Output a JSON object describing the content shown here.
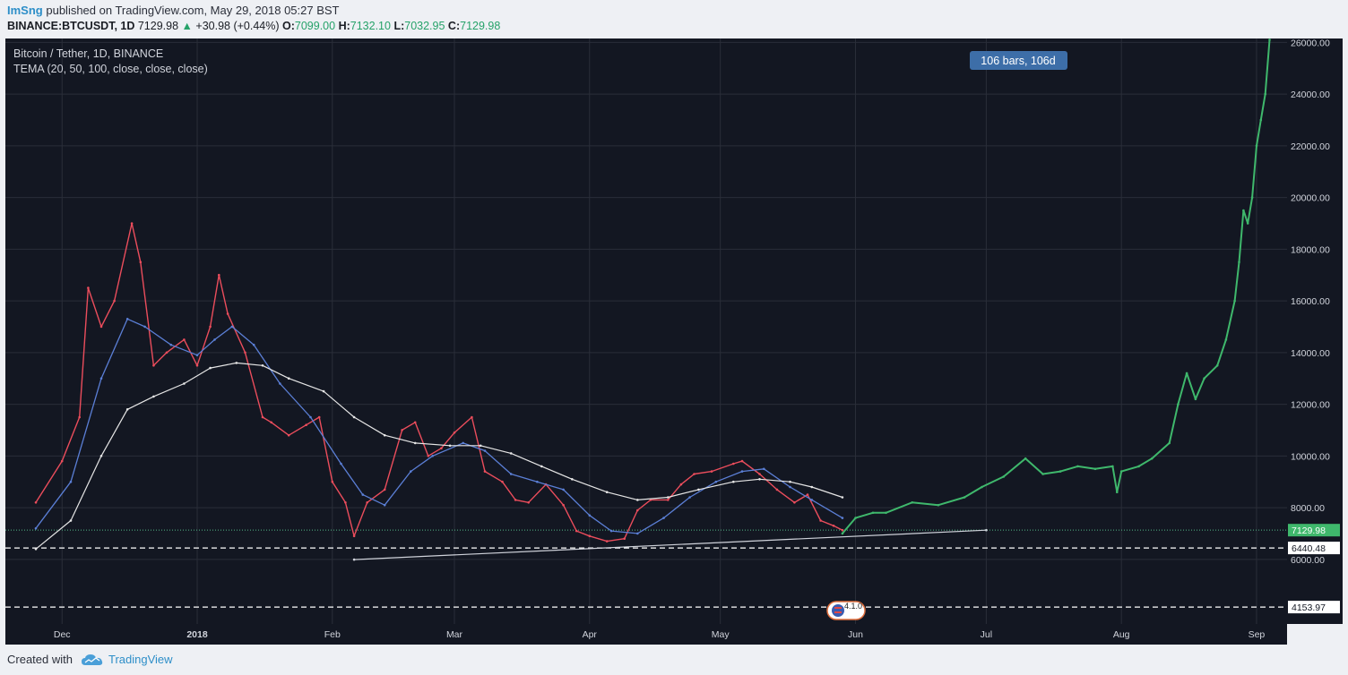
{
  "header": {
    "user": "ImSng",
    "published": "published on TradingView.com, May 29, 2018 05:27 BST",
    "symbol": "BINANCE:BTCUSDT, 1D",
    "last": "7129.98",
    "change_arrow": "▲",
    "change": "+30.98 (+0.44%)",
    "o_label": "O:",
    "o_val": "7099.00",
    "h_label": "H:",
    "h_val": "7132.10",
    "l_label": "L:",
    "l_val": "7032.95",
    "c_label": "C:",
    "c_val": "7129.98"
  },
  "legend": {
    "title": "Bitcoin / Tether, 1D, BINANCE",
    "indicator": "TEMA (20, 50, 100, close, close, close)"
  },
  "measure_badge": "106 bars, 106d",
  "footer": {
    "created_with": "Created with",
    "brand": "TradingView"
  },
  "event_badge": "4.1.0",
  "colors": {
    "background": "#131722",
    "grid": "#2a2e39",
    "up": "#53b987",
    "down": "#eb4d5c",
    "projection": "#3fb86c",
    "tema_fast": "#5b7fd6",
    "tema_slow": "#e6e6e6",
    "price_tag": "#3fb86c"
  },
  "chart_data": {
    "type": "line",
    "title": "Bitcoin / Tether, 1D, BINANCE",
    "x_ticks": [
      "Dec",
      "2018",
      "Feb",
      "Mar",
      "Apr",
      "May",
      "Jun",
      "Jul",
      "Aug",
      "Sep"
    ],
    "y_ticks": [
      "26000.00",
      "24000.00",
      "22000.00",
      "20000.00",
      "18000.00",
      "16000.00",
      "14000.00",
      "12000.00",
      "10000.00",
      "8000.00",
      "6000.00"
    ],
    "ylim": [
      3500,
      26150
    ],
    "last_price_label": "7129.98",
    "horizontal_levels": [
      6440.48,
      4153.97
    ],
    "horizontal_labels": [
      "6440.48",
      "4153.97"
    ],
    "series": [
      {
        "name": "BTCUSDT",
        "values": [
          [
            "2017-11-25",
            8200
          ],
          [
            "2017-12-01",
            9800
          ],
          [
            "2017-12-05",
            11500
          ],
          [
            "2017-12-07",
            16500
          ],
          [
            "2017-12-10",
            15000
          ],
          [
            "2017-12-13",
            16000
          ],
          [
            "2017-12-17",
            19000
          ],
          [
            "2017-12-19",
            17500
          ],
          [
            "2017-12-22",
            13500
          ],
          [
            "2017-12-25",
            14000
          ],
          [
            "2017-12-29",
            14500
          ],
          [
            "2018-01-01",
            13500
          ],
          [
            "2018-01-04",
            15000
          ],
          [
            "2018-01-06",
            17000
          ],
          [
            "2018-01-08",
            15500
          ],
          [
            "2018-01-12",
            14000
          ],
          [
            "2018-01-16",
            11500
          ],
          [
            "2018-01-18",
            11300
          ],
          [
            "2018-01-22",
            10800
          ],
          [
            "2018-01-26",
            11200
          ],
          [
            "2018-01-29",
            11500
          ],
          [
            "2018-02-01",
            9000
          ],
          [
            "2018-02-04",
            8200
          ],
          [
            "2018-02-06",
            6900
          ],
          [
            "2018-02-09",
            8200
          ],
          [
            "2018-02-13",
            8700
          ],
          [
            "2018-02-17",
            11000
          ],
          [
            "2018-02-20",
            11300
          ],
          [
            "2018-02-23",
            10000
          ],
          [
            "2018-02-26",
            10300
          ],
          [
            "2018-03-01",
            10900
          ],
          [
            "2018-03-05",
            11500
          ],
          [
            "2018-03-08",
            9400
          ],
          [
            "2018-03-12",
            9000
          ],
          [
            "2018-03-15",
            8300
          ],
          [
            "2018-03-18",
            8200
          ],
          [
            "2018-03-22",
            8900
          ],
          [
            "2018-03-26",
            8100
          ],
          [
            "2018-03-29",
            7100
          ],
          [
            "2018-04-01",
            6900
          ],
          [
            "2018-04-05",
            6700
          ],
          [
            "2018-04-09",
            6800
          ],
          [
            "2018-04-12",
            7900
          ],
          [
            "2018-04-15",
            8300
          ],
          [
            "2018-04-19",
            8300
          ],
          [
            "2018-04-22",
            8900
          ],
          [
            "2018-04-25",
            9300
          ],
          [
            "2018-04-29",
            9400
          ],
          [
            "2018-05-04",
            9700
          ],
          [
            "2018-05-06",
            9800
          ],
          [
            "2018-05-10",
            9300
          ],
          [
            "2018-05-14",
            8700
          ],
          [
            "2018-05-18",
            8200
          ],
          [
            "2018-05-21",
            8500
          ],
          [
            "2018-05-24",
            7500
          ],
          [
            "2018-05-27",
            7300
          ],
          [
            "2018-05-29",
            7129.98
          ]
        ]
      },
      {
        "name": "Projection",
        "values": [
          [
            "2018-05-29",
            7000
          ],
          [
            "2018-06-01",
            7600
          ],
          [
            "2018-06-05",
            7800
          ],
          [
            "2018-06-08",
            7800
          ],
          [
            "2018-06-14",
            8200
          ],
          [
            "2018-06-20",
            8100
          ],
          [
            "2018-06-26",
            8400
          ],
          [
            "2018-06-30",
            8800
          ],
          [
            "2018-07-05",
            9200
          ],
          [
            "2018-07-10",
            9900
          ],
          [
            "2018-07-14",
            9300
          ],
          [
            "2018-07-18",
            9400
          ],
          [
            "2018-07-22",
            9600
          ],
          [
            "2018-07-26",
            9500
          ],
          [
            "2018-07-30",
            9600
          ],
          [
            "2018-07-31",
            8600
          ],
          [
            "2018-08-01",
            9400
          ],
          [
            "2018-08-05",
            9600
          ],
          [
            "2018-08-08",
            9900
          ],
          [
            "2018-08-12",
            10500
          ],
          [
            "2018-08-14",
            12000
          ],
          [
            "2018-08-16",
            13200
          ],
          [
            "2018-08-18",
            12200
          ],
          [
            "2018-08-20",
            13000
          ],
          [
            "2018-08-23",
            13500
          ],
          [
            "2018-08-25",
            14500
          ],
          [
            "2018-08-27",
            16000
          ],
          [
            "2018-08-28",
            17500
          ],
          [
            "2018-08-29",
            19500
          ],
          [
            "2018-08-30",
            19000
          ],
          [
            "2018-08-31",
            20000
          ],
          [
            "2018-09-01",
            22000
          ],
          [
            "2018-09-02",
            23000
          ],
          [
            "2018-09-03",
            24000
          ],
          [
            "2018-09-04",
            26100
          ]
        ]
      },
      {
        "name": "TEMA fast",
        "values": [
          [
            "2017-11-25",
            7200
          ],
          [
            "2017-12-03",
            9000
          ],
          [
            "2017-12-10",
            13000
          ],
          [
            "2017-12-16",
            15300
          ],
          [
            "2017-12-20",
            15000
          ],
          [
            "2017-12-26",
            14300
          ],
          [
            "2018-01-01",
            13900
          ],
          [
            "2018-01-05",
            14500
          ],
          [
            "2018-01-09",
            15000
          ],
          [
            "2018-01-14",
            14300
          ],
          [
            "2018-01-20",
            12800
          ],
          [
            "2018-01-27",
            11500
          ],
          [
            "2018-02-03",
            9700
          ],
          [
            "2018-02-08",
            8500
          ],
          [
            "2018-02-13",
            8100
          ],
          [
            "2018-02-19",
            9400
          ],
          [
            "2018-02-24",
            10000
          ],
          [
            "2018-03-03",
            10500
          ],
          [
            "2018-03-08",
            10200
          ],
          [
            "2018-03-14",
            9300
          ],
          [
            "2018-03-20",
            9000
          ],
          [
            "2018-03-26",
            8700
          ],
          [
            "2018-04-01",
            7700
          ],
          [
            "2018-04-06",
            7100
          ],
          [
            "2018-04-12",
            7000
          ],
          [
            "2018-04-18",
            7600
          ],
          [
            "2018-04-24",
            8400
          ],
          [
            "2018-04-30",
            9000
          ],
          [
            "2018-05-06",
            9400
          ],
          [
            "2018-05-11",
            9500
          ],
          [
            "2018-05-17",
            8800
          ],
          [
            "2018-05-22",
            8300
          ],
          [
            "2018-05-29",
            7600
          ]
        ]
      },
      {
        "name": "TEMA slow",
        "values": [
          [
            "2017-11-25",
            6400
          ],
          [
            "2017-12-03",
            7500
          ],
          [
            "2017-12-10",
            10000
          ],
          [
            "2017-12-16",
            11800
          ],
          [
            "2017-12-22",
            12300
          ],
          [
            "2017-12-29",
            12800
          ],
          [
            "2018-01-04",
            13400
          ],
          [
            "2018-01-10",
            13600
          ],
          [
            "2018-01-16",
            13500
          ],
          [
            "2018-01-22",
            13000
          ],
          [
            "2018-01-30",
            12500
          ],
          [
            "2018-02-06",
            11500
          ],
          [
            "2018-02-13",
            10800
          ],
          [
            "2018-02-20",
            10500
          ],
          [
            "2018-02-28",
            10400
          ],
          [
            "2018-03-07",
            10400
          ],
          [
            "2018-03-14",
            10100
          ],
          [
            "2018-03-21",
            9600
          ],
          [
            "2018-03-28",
            9100
          ],
          [
            "2018-04-05",
            8600
          ],
          [
            "2018-04-12",
            8300
          ],
          [
            "2018-04-19",
            8400
          ],
          [
            "2018-04-26",
            8700
          ],
          [
            "2018-05-04",
            9000
          ],
          [
            "2018-05-10",
            9100
          ],
          [
            "2018-05-17",
            9000
          ],
          [
            "2018-05-22",
            8800
          ],
          [
            "2018-05-29",
            8400
          ]
        ]
      },
      {
        "name": "Trendline",
        "values": [
          [
            "2018-02-06",
            5990
          ],
          [
            "2018-07-01",
            7130
          ]
        ]
      }
    ],
    "grid": true
  }
}
